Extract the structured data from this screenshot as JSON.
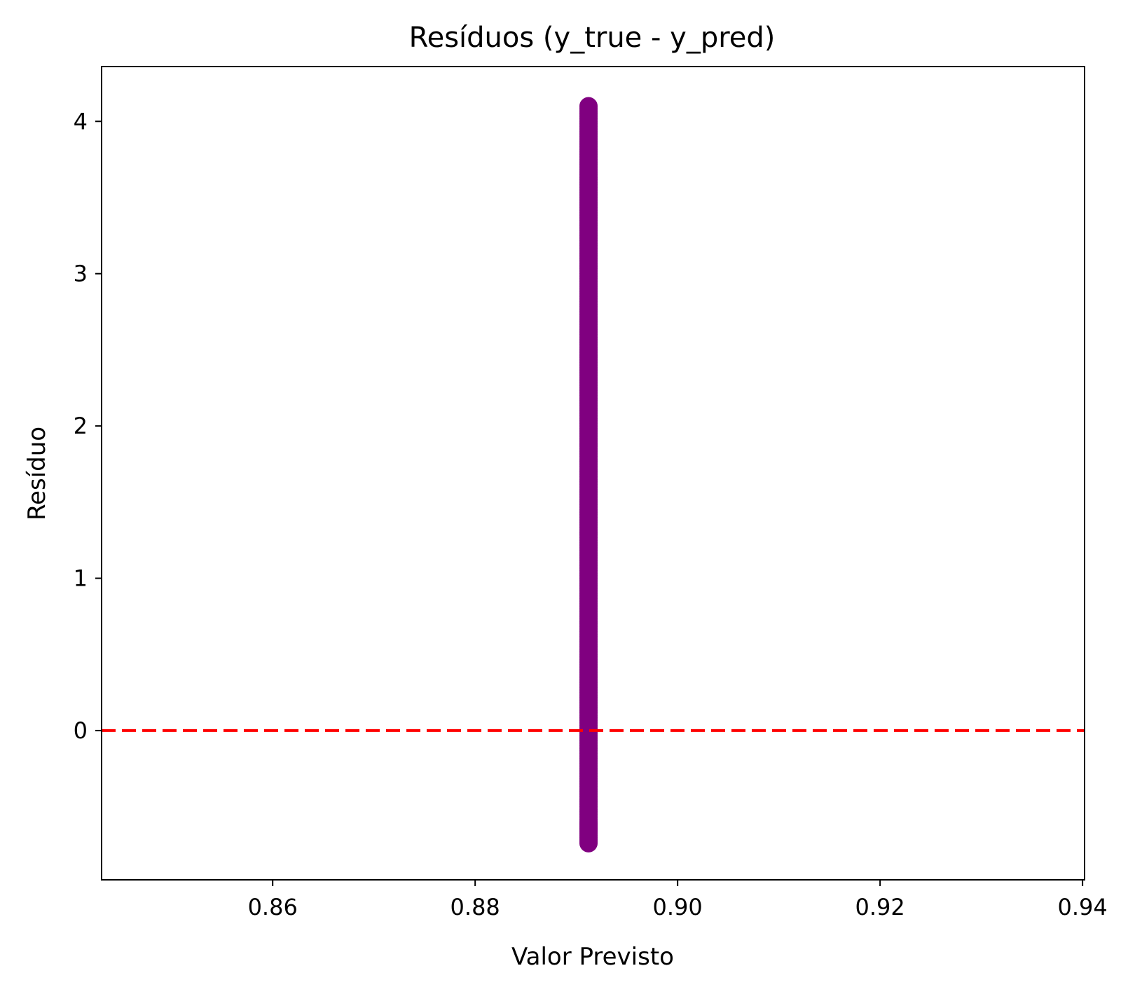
{
  "chart_data": {
    "type": "scatter",
    "title": "Resíduos (y_true - y_pred)",
    "xlabel": "Valor Previsto",
    "ylabel": "Resíduo",
    "xlim": [
      0.8431,
      0.9402
    ],
    "ylim": [
      -0.98,
      4.36
    ],
    "x_ticks": [
      {
        "value": 0.86,
        "label": "0.86"
      },
      {
        "value": 0.88,
        "label": "0.88"
      },
      {
        "value": 0.9,
        "label": "0.90"
      },
      {
        "value": 0.92,
        "label": "0.92"
      },
      {
        "value": 0.94,
        "label": "0.94"
      }
    ],
    "y_ticks": [
      {
        "value": 0,
        "label": "0"
      },
      {
        "value": 1,
        "label": "1"
      },
      {
        "value": 2,
        "label": "2"
      },
      {
        "value": 3,
        "label": "3"
      },
      {
        "value": 4,
        "label": "4"
      }
    ],
    "grid": false,
    "legend": "none",
    "marker_color": "#800080",
    "reference_line": {
      "y": 0,
      "style": "dashed",
      "color": "#ff0000"
    },
    "points": {
      "x": 0.8912,
      "y": [
        -0.74,
        -0.66,
        -0.6,
        -0.5,
        -0.4,
        -0.3,
        -0.2,
        -0.1,
        0.0,
        0.1,
        0.2,
        0.3,
        0.4,
        0.5,
        0.6,
        0.7,
        0.8,
        0.9,
        1.0,
        1.1,
        1.2,
        1.3,
        1.4,
        1.5,
        1.6,
        1.7,
        1.8,
        1.9,
        2.0,
        2.1,
        2.2,
        2.3,
        2.4,
        2.5,
        2.6,
        2.7,
        2.8,
        2.9,
        3.0,
        3.1,
        3.2,
        3.3,
        3.4,
        3.5,
        3.6,
        3.7,
        3.8,
        3.9,
        4.0,
        4.1
      ]
    }
  }
}
